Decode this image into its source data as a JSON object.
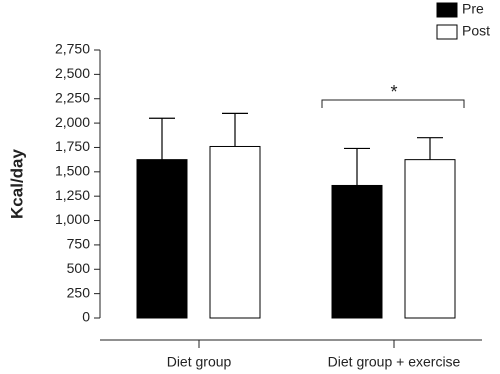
{
  "chart_data": {
    "type": "bar",
    "y_label": "Kcal/day",
    "categories": [
      "Diet group",
      "Diet group + exercise"
    ],
    "series": [
      {
        "name": "Pre",
        "color": "#000000",
        "values": [
          1625,
          1360
        ],
        "errors": [
          425,
          380
        ]
      },
      {
        "name": "Post",
        "color": "#ffffff",
        "values": [
          1760,
          1625
        ],
        "errors": [
          340,
          225
        ]
      }
    ],
    "ylim": [
      0,
      2750
    ],
    "yticks": [
      0,
      250,
      500,
      750,
      {
        "value": 1000,
        "label": "1,000"
      },
      {
        "value": 1250,
        "label": "1,250"
      },
      {
        "value": 1500,
        "label": "1,500"
      },
      {
        "value": 1750,
        "label": "1,750"
      },
      {
        "value": 2000,
        "label": "2,000"
      },
      {
        "value": 2250,
        "label": "2,250"
      },
      {
        "value": 2500,
        "label": "2,500"
      },
      {
        "value": 2750,
        "label": "2,750"
      }
    ],
    "annotation": "*",
    "legend": "top-right"
  }
}
